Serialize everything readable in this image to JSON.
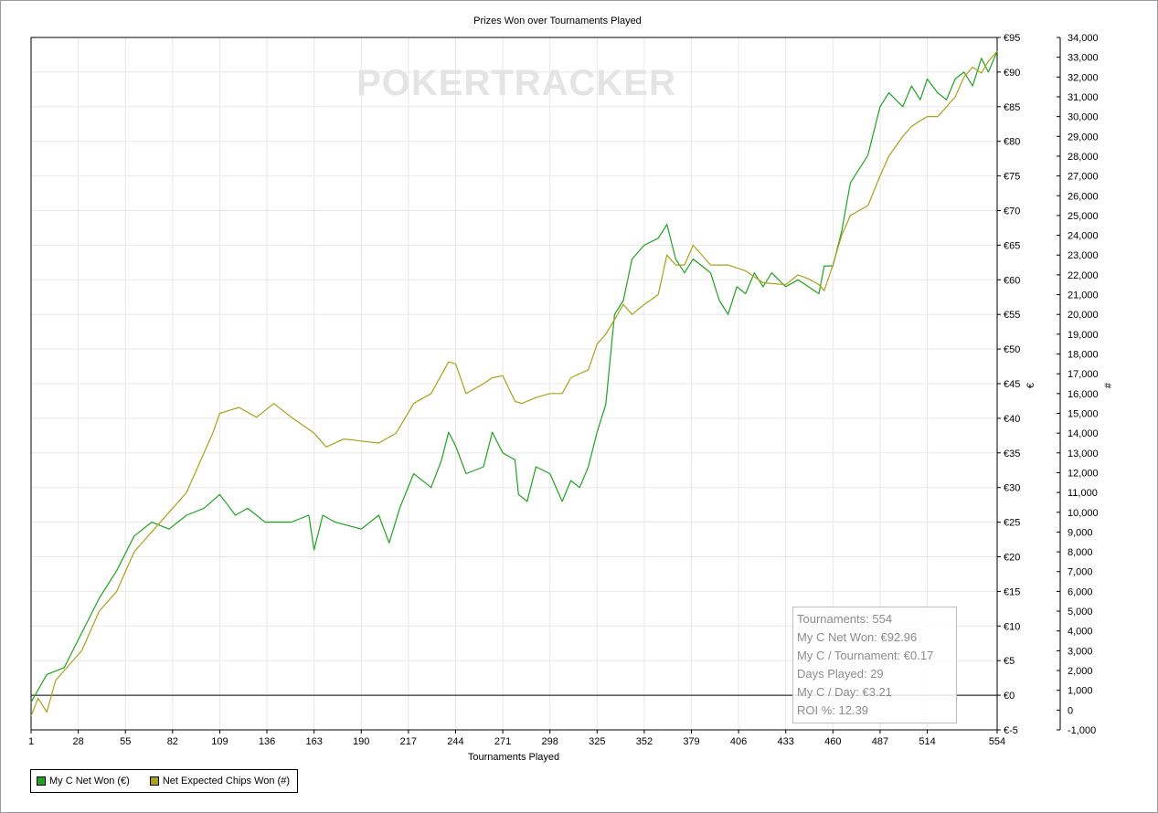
{
  "chart_data": {
    "type": "line",
    "title": "Prizes Won over Tournaments Played",
    "xlabel": "Tournaments Played",
    "ylabel_left": "€",
    "ylabel_right": "#",
    "watermark": "POKERTRACKER",
    "grid": true,
    "legend_position": "bottom-left",
    "x_ticks": [
      "1",
      "28",
      "55",
      "82",
      "109",
      "136",
      "163",
      "190",
      "217",
      "244",
      "271",
      "298",
      "325",
      "352",
      "379",
      "406",
      "433",
      "460",
      "487",
      "514",
      "554"
    ],
    "xlim": [
      1,
      554
    ],
    "y_left": {
      "lim": [
        -5,
        95
      ],
      "ticks": [
        "€-5",
        "€0",
        "€5",
        "€10",
        "€15",
        "€20",
        "€25",
        "€30",
        "€35",
        "€40",
        "€45",
        "€50",
        "€55",
        "€60",
        "€65",
        "€70",
        "€75",
        "€80",
        "€85",
        "€90",
        "€95"
      ]
    },
    "y_right": {
      "lim": [
        -1000,
        34000
      ],
      "ticks": [
        "-1,000",
        "0",
        "1,000",
        "2,000",
        "3,000",
        "4,000",
        "5,000",
        "6,000",
        "7,000",
        "8,000",
        "9,000",
        "10,000",
        "11,000",
        "12,000",
        "13,000",
        "14,000",
        "15,000",
        "16,000",
        "17,000",
        "18,000",
        "19,000",
        "20,000",
        "21,000",
        "22,000",
        "23,000",
        "24,000",
        "25,000",
        "26,000",
        "27,000",
        "28,000",
        "29,000",
        "30,000",
        "31,000",
        "32,000",
        "33,000",
        "34,000"
      ]
    },
    "series": [
      {
        "name": "My C Net Won (€)",
        "color": "#1fa31f",
        "axis": "left",
        "x": [
          1,
          10,
          20,
          30,
          40,
          50,
          60,
          70,
          80,
          90,
          100,
          109,
          118,
          125,
          135,
          150,
          160,
          163,
          168,
          175,
          190,
          200,
          206,
          212,
          220,
          230,
          236,
          240,
          244,
          250,
          260,
          265,
          271,
          278,
          280,
          285,
          290,
          298,
          305,
          310,
          315,
          320,
          325,
          330,
          335,
          340,
          345,
          352,
          360,
          365,
          370,
          375,
          380,
          385,
          390,
          395,
          400,
          405,
          410,
          415,
          420,
          425,
          433,
          440,
          446,
          452,
          455,
          460,
          465,
          470,
          480,
          487,
          492,
          500,
          505,
          510,
          514,
          520,
          525,
          530,
          535,
          540,
          545,
          549,
          554
        ],
        "y": [
          -1,
          3,
          4,
          9,
          14,
          18,
          23,
          25,
          24,
          26,
          27,
          29,
          26,
          27,
          25,
          25,
          26,
          21,
          26,
          25,
          24,
          26,
          22,
          27,
          32,
          30,
          34,
          38,
          36,
          32,
          33,
          38,
          35,
          34,
          29,
          28,
          33,
          32,
          28,
          31,
          30,
          33,
          38,
          42,
          55,
          57,
          63,
          65,
          66,
          68,
          63,
          61,
          63,
          62,
          61,
          57,
          55,
          59,
          58,
          61,
          59,
          61,
          59,
          60,
          59,
          58,
          62,
          62,
          67,
          74,
          78,
          85,
          87,
          85,
          88,
          86,
          89,
          87,
          86,
          89,
          90,
          88,
          92,
          90,
          93
        ]
      },
      {
        "name": "Net Expected Chips Won (#)",
        "color": "#a7a31a",
        "axis": "right",
        "x": [
          1,
          5,
          10,
          15,
          20,
          30,
          40,
          50,
          60,
          70,
          80,
          90,
          100,
          105,
          109,
          120,
          130,
          140,
          150,
          163,
          170,
          180,
          190,
          200,
          210,
          220,
          230,
          240,
          244,
          250,
          260,
          265,
          271,
          278,
          282,
          290,
          298,
          305,
          310,
          320,
          325,
          330,
          340,
          345,
          352,
          360,
          365,
          370,
          375,
          380,
          390,
          400,
          410,
          420,
          433,
          440,
          446,
          452,
          455,
          460,
          465,
          470,
          480,
          487,
          492,
          500,
          505,
          510,
          514,
          520,
          525,
          530,
          535,
          540,
          545,
          549,
          554
        ],
        "y": [
          -300,
          600,
          -100,
          1500,
          2000,
          3000,
          5000,
          6000,
          8000,
          9000,
          10000,
          11000,
          13000,
          14000,
          15000,
          15300,
          14800,
          15500,
          14800,
          14000,
          13300,
          13700,
          13600,
          13500,
          14000,
          15500,
          16000,
          17600,
          17500,
          16000,
          16500,
          16800,
          16900,
          15600,
          15500,
          15800,
          16000,
          16000,
          16800,
          17200,
          18500,
          19000,
          20500,
          20000,
          20500,
          21000,
          23000,
          22500,
          22500,
          23500,
          22500,
          22500,
          22200,
          21600,
          21500,
          22000,
          21800,
          21500,
          21200,
          22500,
          24000,
          25000,
          25500,
          27000,
          28000,
          29000,
          29500,
          29800,
          30000,
          30000,
          30500,
          31000,
          32000,
          32500,
          32200,
          32800,
          33300
        ]
      }
    ]
  },
  "stats": {
    "tournaments": "Tournaments: 554",
    "net_won": "My C Net Won: €92.96",
    "per_tournament": "My C / Tournament: €0.17",
    "days_played": "Days Played: 29",
    "per_day": "My C / Day: €3.21",
    "roi": "ROI %: 12.39"
  },
  "legend": {
    "item1": "My C Net Won (€)",
    "item2": "Net Expected Chips Won (#)",
    "item1_color": "#1fa31f",
    "item2_color": "#a7a31a"
  }
}
